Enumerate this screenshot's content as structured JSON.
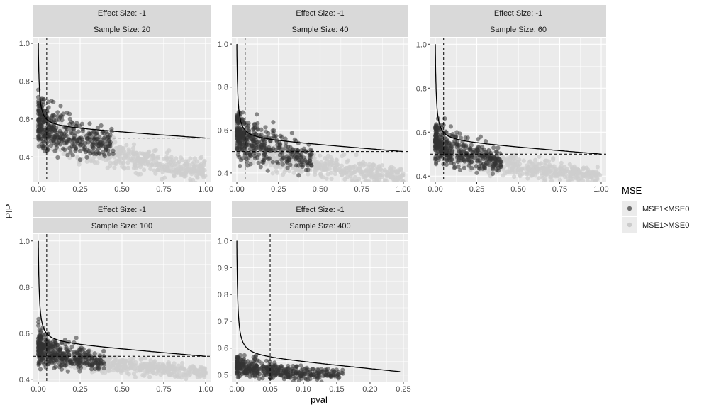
{
  "y_axis_title": "PIP",
  "x_axis_title": "pval",
  "legend": {
    "title": "MSE",
    "items": [
      {
        "label": "MSE1<MSE0",
        "color": "#3a3a3a"
      },
      {
        "label": "MSE1>MSE0",
        "color": "#c8c8c8"
      }
    ]
  },
  "colors": {
    "panel_bg": "#ebebeb",
    "strip_bg": "#d9d9d9",
    "grid": "#ffffff",
    "dark_points": "#333333",
    "light_points": "#cdcdcd",
    "curve": "#000000"
  },
  "chart_data": [
    {
      "type": "scatter",
      "strip": [
        "Effect Size: -1",
        "Sample Size: 20"
      ],
      "xlim": [
        -0.03,
        1.03
      ],
      "ylim": [
        0.27,
        1.03
      ],
      "x_ticks": [
        0.0,
        0.25,
        0.5,
        0.75,
        1.0
      ],
      "x_tick_labels": [
        "0.00",
        "0.25",
        "0.50",
        "0.75",
        "1.00"
      ],
      "y_ticks": [
        0.4,
        0.6,
        0.8,
        1.0
      ],
      "y_tick_labels": [
        "0.4",
        "0.6",
        "0.8",
        "1.0"
      ],
      "vline": 0.05,
      "hline": 0.5,
      "series": [
        {
          "name": "MSE1<MSE0",
          "x_range": [
            0.0,
            0.45
          ],
          "y_center": [
            0.6,
            0.47
          ],
          "y_spread": 0.07
        },
        {
          "name": "MSE1>MSE0",
          "x_range": [
            0.0,
            1.0
          ],
          "y_center": [
            0.58,
            0.33
          ],
          "y_spread": 0.05
        }
      ],
      "curve": {
        "x_start": 0.0,
        "x_end": 1.0,
        "y_start": 1.0,
        "y_end": 0.5
      }
    },
    {
      "type": "scatter",
      "strip": [
        "Effect Size: -1",
        "Sample Size: 40"
      ],
      "xlim": [
        -0.03,
        1.03
      ],
      "ylim": [
        0.36,
        1.03
      ],
      "x_ticks": [
        0.0,
        0.25,
        0.5,
        0.75,
        1.0
      ],
      "x_tick_labels": [
        "0.00",
        "0.25",
        "0.50",
        "0.75",
        "1.00"
      ],
      "y_ticks": [
        0.4,
        0.6,
        0.8,
        1.0
      ],
      "y_tick_labels": [
        "0.4",
        "0.6",
        "0.8",
        "1.0"
      ],
      "vline": 0.05,
      "hline": 0.5,
      "series": [
        {
          "name": "MSE1<MSE0",
          "x_range": [
            0.0,
            0.45
          ],
          "y_center": [
            0.6,
            0.47
          ],
          "y_spread": 0.06
        },
        {
          "name": "MSE1>MSE0",
          "x_range": [
            0.0,
            1.0
          ],
          "y_center": [
            0.58,
            0.38
          ],
          "y_spread": 0.04
        }
      ],
      "curve": {
        "x_start": 0.0,
        "x_end": 1.0,
        "y_start": 1.0,
        "y_end": 0.5
      }
    },
    {
      "type": "scatter",
      "strip": [
        "Effect Size: -1",
        "Sample Size: 60"
      ],
      "xlim": [
        -0.03,
        1.03
      ],
      "ylim": [
        0.375,
        1.03
      ],
      "x_ticks": [
        0.0,
        0.25,
        0.5,
        0.75,
        1.0
      ],
      "x_tick_labels": [
        "0.00",
        "0.25",
        "0.50",
        "0.75",
        "1.00"
      ],
      "y_ticks": [
        0.4,
        0.6,
        0.8,
        1.0
      ],
      "y_tick_labels": [
        "0.4",
        "0.6",
        "0.8",
        "1.0"
      ],
      "vline": 0.05,
      "hline": 0.5,
      "series": [
        {
          "name": "MSE1<MSE0",
          "x_range": [
            0.0,
            0.4
          ],
          "y_center": [
            0.57,
            0.47
          ],
          "y_spread": 0.05
        },
        {
          "name": "MSE1>MSE0",
          "x_range": [
            0.0,
            1.0
          ],
          "y_center": [
            0.55,
            0.4
          ],
          "y_spread": 0.03
        }
      ],
      "curve": {
        "x_start": 0.0,
        "x_end": 1.0,
        "y_start": 1.0,
        "y_end": 0.5
      }
    },
    {
      "type": "scatter",
      "strip": [
        "Effect Size: -1",
        "Sample Size: 100"
      ],
      "xlim": [
        -0.03,
        1.03
      ],
      "ylim": [
        0.39,
        1.03
      ],
      "x_ticks": [
        0.0,
        0.25,
        0.5,
        0.75,
        1.0
      ],
      "x_tick_labels": [
        "0.00",
        "0.25",
        "0.50",
        "0.75",
        "1.00"
      ],
      "y_ticks": [
        0.4,
        0.6,
        0.8,
        1.0
      ],
      "y_tick_labels": [
        "0.4",
        "0.6",
        "0.8",
        "1.0"
      ],
      "vline": 0.05,
      "hline": 0.5,
      "series": [
        {
          "name": "MSE1<MSE0",
          "x_range": [
            0.0,
            0.4
          ],
          "y_center": [
            0.56,
            0.47
          ],
          "y_spread": 0.04
        },
        {
          "name": "MSE1>MSE0",
          "x_range": [
            0.0,
            1.0
          ],
          "y_center": [
            0.54,
            0.43
          ],
          "y_spread": 0.025
        }
      ],
      "curve": {
        "x_start": 0.0,
        "x_end": 1.0,
        "y_start": 1.0,
        "y_end": 0.5
      }
    },
    {
      "type": "scatter",
      "strip": [
        "Effect Size: -1",
        "Sample Size: 400"
      ],
      "xlim": [
        -0.0075,
        0.2575
      ],
      "ylim": [
        0.475,
        1.025
      ],
      "x_ticks": [
        0.0,
        0.05,
        0.1,
        0.15,
        0.2,
        0.25
      ],
      "x_tick_labels": [
        "0.00",
        "0.05",
        "0.10",
        "0.15",
        "0.20",
        "0.25"
      ],
      "y_ticks": [
        0.5,
        0.6,
        0.7,
        0.8,
        0.9,
        1.0
      ],
      "y_tick_labels": [
        "0.5",
        "0.6",
        "0.7",
        "0.8",
        "0.9",
        "1.0"
      ],
      "vline": 0.05,
      "hline": 0.5,
      "series": [
        {
          "name": "MSE1<MSE0",
          "x_range": [
            0.0,
            0.16
          ],
          "y_center": [
            0.54,
            0.5
          ],
          "y_spread": 0.02
        },
        {
          "name": "MSE1>MSE0",
          "x_range": [
            0.0,
            0.06
          ],
          "y_center": [
            0.53,
            0.51
          ],
          "y_spread": 0.01
        }
      ],
      "curve": {
        "x_start": 0.0,
        "x_end": 0.245,
        "y_start": 1.0,
        "y_end": 0.512
      }
    }
  ]
}
